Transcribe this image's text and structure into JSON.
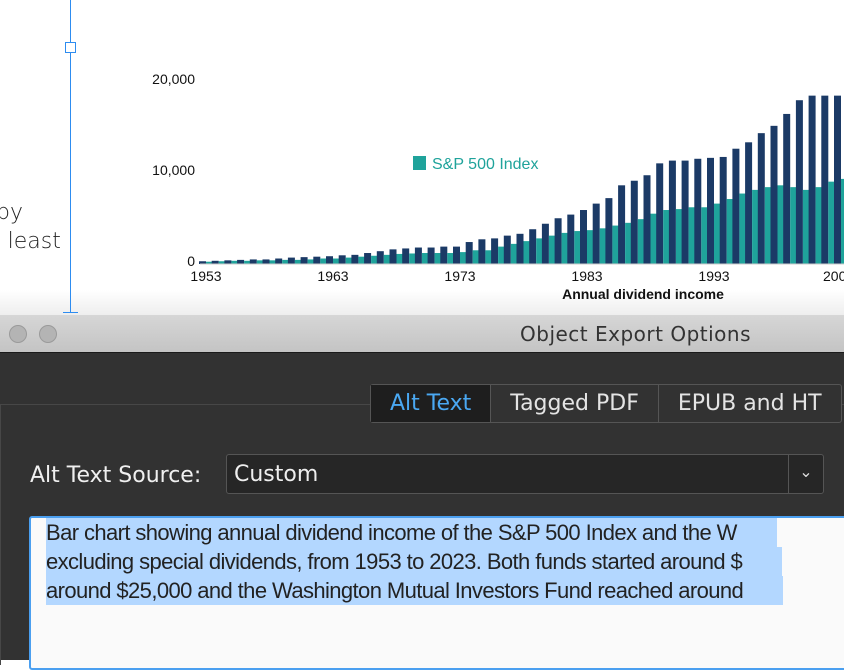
{
  "document": {
    "text_fragments": [
      "py",
      "t least",
      "."
    ]
  },
  "chart_data": {
    "type": "bar",
    "xlabel": "Annual dividend income",
    "ylabel": "",
    "ylim": [
      0,
      20000
    ],
    "yticks": [
      "0",
      "10,000",
      "20,000"
    ],
    "xticks": [
      "1953",
      "1963",
      "1973",
      "1983",
      "1993",
      "200"
    ],
    "x": [
      1953,
      1954,
      1955,
      1956,
      1957,
      1958,
      1959,
      1960,
      1961,
      1962,
      1963,
      1964,
      1965,
      1966,
      1967,
      1968,
      1969,
      1970,
      1971,
      1972,
      1973,
      1974,
      1975,
      1976,
      1977,
      1978,
      1979,
      1980,
      1981,
      1982,
      1983,
      1984,
      1985,
      1986,
      1987,
      1988,
      1989,
      1990,
      1991,
      1992,
      1993,
      1994,
      1995,
      1996,
      1997,
      1998,
      1999,
      2000,
      2001,
      2002,
      2003
    ],
    "legend": "S&P 500 Index",
    "series": [
      {
        "color": "#1b3a66",
        "values": [
          300,
          350,
          400,
          450,
          500,
          500,
          600,
          700,
          750,
          800,
          850,
          950,
          1000,
          1200,
          1400,
          1600,
          1700,
          1800,
          1800,
          1900,
          1900,
          2400,
          2700,
          2800,
          3100,
          3300,
          3800,
          4400,
          5000,
          5400,
          5900,
          6600,
          7200,
          8600,
          9100,
          9700,
          11000,
          11300,
          11300,
          11500,
          11600,
          11700,
          12600,
          13300,
          14300,
          15100,
          16400,
          17900,
          18400,
          18400,
          18400
        ]
      },
      {
        "name": "S&P 500 Index",
        "color": "#1fa39b",
        "values": [
          250,
          300,
          350,
          350,
          400,
          400,
          450,
          450,
          500,
          600,
          600,
          700,
          800,
          900,
          1000,
          1100,
          1150,
          1200,
          1200,
          1200,
          1300,
          1500,
          1500,
          1900,
          2200,
          2500,
          2800,
          3100,
          3400,
          3600,
          3700,
          3900,
          4200,
          4500,
          4900,
          5500,
          5900,
          6000,
          6200,
          6200,
          6600,
          7100,
          7700,
          8100,
          8400,
          8600,
          8400,
          8100,
          8400,
          9000,
          9300
        ]
      }
    ]
  },
  "dialog": {
    "title": "Object Export Options",
    "tabs": [
      {
        "label": "Alt Text"
      },
      {
        "label": "Tagged PDF"
      },
      {
        "label": "EPUB and HT"
      }
    ],
    "alt_text_source_label": "Alt Text Source:",
    "alt_text_source_value": "Custom",
    "alt_text_lines": [
      "Bar chart showing annual dividend income of the S&P 500 Index and the W",
      "excluding special dividends, from 1953 to 2023. Both funds started around $",
      "around $25,000 and the Washington Mutual Investors Fund reached around"
    ]
  }
}
